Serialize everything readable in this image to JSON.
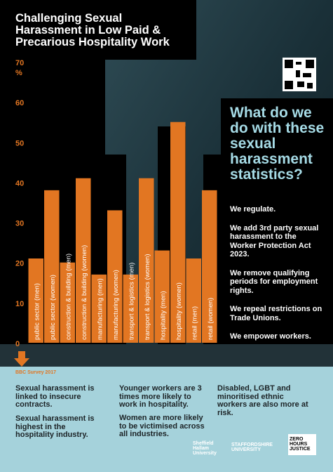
{
  "chart_data": {
    "type": "bar",
    "title": "Challenging Sexual Harassment in Low Paid & Precarious Hospitality Work",
    "y_unit": "%",
    "categories": [
      "public sector (men)",
      "public sector (women)",
      "construction & building (men)",
      "construction & building (women)",
      "manufacturing (men)",
      "manufacturing (women)",
      "transport & logistics (men)",
      "transport & logistics (women)",
      "hospitality (men)",
      "hospitality (women)",
      "retail (men)",
      "retail (women)"
    ],
    "values": [
      21,
      38,
      20,
      41,
      17,
      33,
      17,
      41,
      23,
      55,
      21,
      38
    ],
    "color": "#e27622",
    "ylim": [
      0,
      70
    ],
    "yticks": [
      0,
      10,
      20,
      30,
      40,
      50,
      60,
      70
    ],
    "source": "BBC Survey 2017"
  },
  "panel": {
    "heading": "What do we do with these sexual harassment statistics?",
    "actions": [
      "We regulate.",
      "We add 3rd party sexual harassment to the Worker Protection Act 2023.",
      "We remove qualifying periods for employment rights.",
      "We repeal restrictions on Trade Unions.",
      "We empower workers."
    ]
  },
  "facts": [
    [
      "Sexual harassment is linked to insecure contracts.",
      "Sexual harassment is highest in the hospitality industry."
    ],
    [
      "Younger workers are 3 times more likely to work in hospitality.",
      "Women are more likely to be victimised across all industries."
    ],
    [
      "Disabled, LGBT and minoritised ethnic workers are also more at risk."
    ]
  ],
  "logos": [
    "Sheffield Hallam University",
    "STAFFORDSHIRE UNIVERSITY",
    "ZERO HOURS JUSTICE"
  ]
}
